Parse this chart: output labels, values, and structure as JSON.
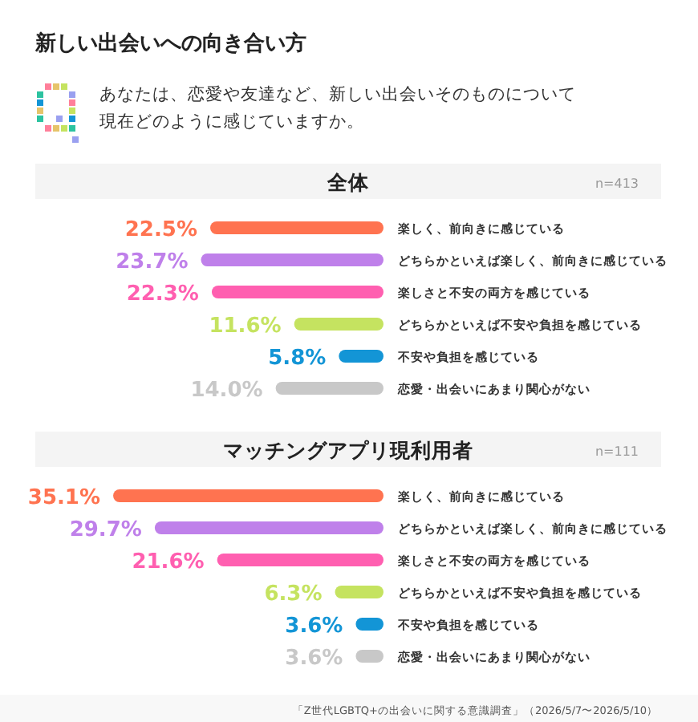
{
  "chart_data": [
    {
      "type": "bar",
      "orientation": "horizontal",
      "title": "新しい出会いへの向き合い方",
      "subtitle": "あなたは、恋愛や友達など、新しい出会いそのものについて現在どのように感じていますか。",
      "annotations": [
        "全体",
        "n=413"
      ],
      "categories": [
        "楽しく、前向きに感じている",
        "どちらかといえば楽しく、前向きに感じている",
        "楽しさと不安の両方を感じている",
        "どちらかといえば不安や負担を感じている",
        "不安や負担を感じている",
        "恋愛・出会いにあまり関心がない"
      ],
      "values": [
        22.5,
        23.7,
        22.3,
        11.6,
        5.8,
        14.0
      ],
      "value_labels": [
        "22.5%",
        "23.7%",
        "22.3%",
        "11.6%",
        "5.8%",
        "14.0%"
      ],
      "colors": [
        "#ff7350",
        "#bf80ea",
        "#ff5fb0",
        "#c5e360",
        "#1395d6",
        "#c8c8c8"
      ]
    },
    {
      "type": "bar",
      "orientation": "horizontal",
      "title": "マッチングアプリ現利用者",
      "annotations": [
        "n=111",
        "「Z世代LGBTQ+の出会いに関する意識調査」（2026/5/7〜2026/5/10）"
      ],
      "categories": [
        "楽しく、前向きに感じている",
        "どちらかといえば楽しく、前向きに感じている",
        "楽しさと不安の両方を感じている",
        "どちらかといえば不安や負担を感じている",
        "不安や負担を感じている",
        "恋愛・出会いにあまり関心がない"
      ],
      "values": [
        35.1,
        29.7,
        21.6,
        6.3,
        3.6,
        3.6
      ],
      "value_labels": [
        "35.1%",
        "29.7%",
        "21.6%",
        "6.3%",
        "3.6%",
        "3.6%"
      ],
      "colors": [
        "#ff7350",
        "#bf80ea",
        "#ff5fb0",
        "#c5e360",
        "#1395d6",
        "#c8c8c8"
      ]
    }
  ]
}
